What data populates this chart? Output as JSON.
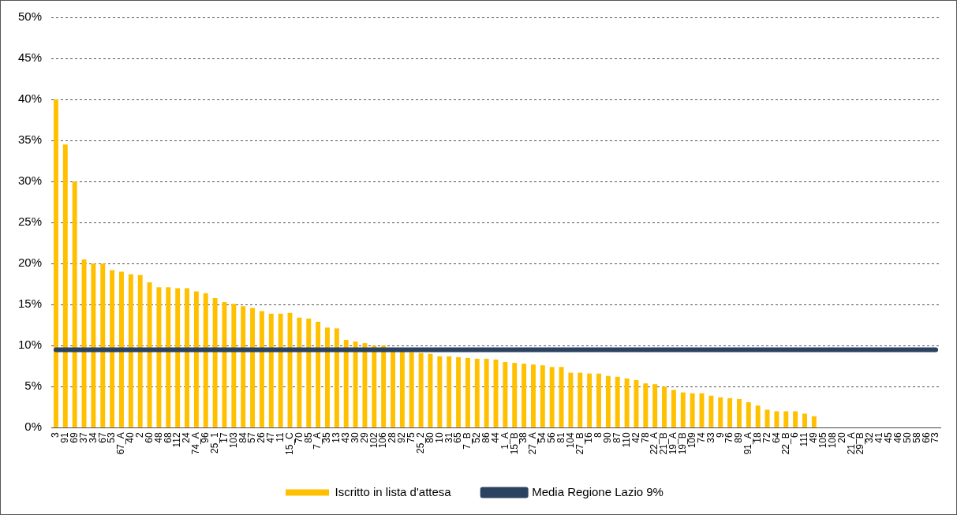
{
  "chart_data": {
    "type": "bar",
    "categories": [
      "3",
      "91",
      "69",
      "37",
      "34",
      "67",
      "53",
      "67_A",
      "40",
      "2",
      "60",
      "48",
      "68",
      "112",
      "24",
      "74_A",
      "96",
      "25_1",
      "17",
      "103",
      "84",
      "57",
      "26",
      "47",
      "11",
      "15_C",
      "70",
      "85",
      "7_A",
      "35",
      "13",
      "43",
      "30",
      "29",
      "102",
      "106",
      "28",
      "92",
      "75",
      "25_2",
      "80",
      "10",
      "31",
      "65",
      "7_B",
      "52",
      "86",
      "44",
      "1_A",
      "15_B",
      "38",
      "27_A",
      "54",
      "56",
      "81",
      "104",
      "27_B",
      "16",
      "8",
      "90",
      "87",
      "110",
      "42",
      "78",
      "22_A",
      "21_B",
      "19_A",
      "19_B",
      "109",
      "74",
      "33",
      "9",
      "76",
      "89",
      "91_A",
      "18",
      "72",
      "64",
      "22_B",
      "6",
      "111",
      "49",
      "105",
      "108",
      "20",
      "21_A",
      "29_B",
      "32",
      "41",
      "45",
      "46",
      "50",
      "58",
      "66",
      "73"
    ],
    "series": [
      {
        "name": "Iscritto in lista d'attesa",
        "color": "#ffc000",
        "values": [
          40,
          34.5,
          30,
          20.5,
          20,
          20,
          19.2,
          19,
          18.7,
          18.6,
          17.7,
          17.1,
          17.1,
          17,
          17,
          16.6,
          16.4,
          15.8,
          15.3,
          15.1,
          14.8,
          14.6,
          14.2,
          13.9,
          13.9,
          14,
          13.4,
          13.3,
          12.9,
          12.2,
          12.1,
          10.7,
          10.5,
          10.3,
          10,
          10,
          9.4,
          9.3,
          9.2,
          9.1,
          9,
          8.7,
          8.7,
          8.6,
          8.5,
          8.4,
          8.4,
          8.3,
          8,
          7.9,
          7.8,
          7.7,
          7.6,
          7.4,
          7.4,
          6.7,
          6.7,
          6.6,
          6.6,
          6.3,
          6.2,
          6,
          5.8,
          5.4,
          5.3,
          5,
          4.6,
          4.3,
          4.2,
          4.2,
          3.9,
          3.7,
          3.6,
          3.5,
          3.1,
          2.7,
          2.2,
          2,
          2,
          2,
          1.7,
          1.4,
          0,
          0,
          0,
          0,
          0,
          0,
          0,
          0,
          0,
          0,
          0,
          0,
          0
        ]
      },
      {
        "name": "Media Regione Lazio 9%",
        "type": "line",
        "color": "#2b4361",
        "values": [
          9.5,
          9.5,
          9.5,
          9.5,
          9.5,
          9.5,
          9.5,
          9.5,
          9.5,
          9.5,
          9.5,
          9.5,
          9.5,
          9.5,
          9.5,
          9.5,
          9.5,
          9.5,
          9.5,
          9.5,
          9.5,
          9.5,
          9.5,
          9.5,
          9.5,
          9.5,
          9.5,
          9.5,
          9.5,
          9.5,
          9.5,
          9.5,
          9.5,
          9.5,
          9.5,
          9.5,
          9.5,
          9.5,
          9.5,
          9.5,
          9.5,
          9.5,
          9.5,
          9.5,
          9.5,
          9.5,
          9.5,
          9.5,
          9.5,
          9.5,
          9.5,
          9.5,
          9.5,
          9.5,
          9.5,
          9.5,
          9.5,
          9.5,
          9.5,
          9.5,
          9.5,
          9.5,
          9.5,
          9.5,
          9.5,
          9.5,
          9.5,
          9.5,
          9.5,
          9.5,
          9.5,
          9.5,
          9.5,
          9.5,
          9.5,
          9.5,
          9.5,
          9.5,
          9.5,
          9.5,
          9.5,
          9.5,
          9.5,
          9.5,
          9.5,
          9.5,
          9.5,
          9.5,
          9.5,
          9.5,
          9.5,
          9.5,
          9.5,
          9.5,
          9.5
        ]
      }
    ],
    "ylim": [
      0,
      50
    ],
    "yticks": [
      {
        "value": 0,
        "label": "0%"
      },
      {
        "value": 5,
        "label": "5%"
      },
      {
        "value": 10,
        "label": "10%"
      },
      {
        "value": 15,
        "label": "15%"
      },
      {
        "value": 20,
        "label": "20%"
      },
      {
        "value": 25,
        "label": "25%"
      },
      {
        "value": 30,
        "label": "30%"
      },
      {
        "value": 35,
        "label": "35%"
      },
      {
        "value": 40,
        "label": "40%"
      },
      {
        "value": 45,
        "label": "45%"
      },
      {
        "value": 50,
        "label": "50%"
      }
    ],
    "grid": "y",
    "legend": "bottom",
    "marker": "none"
  }
}
